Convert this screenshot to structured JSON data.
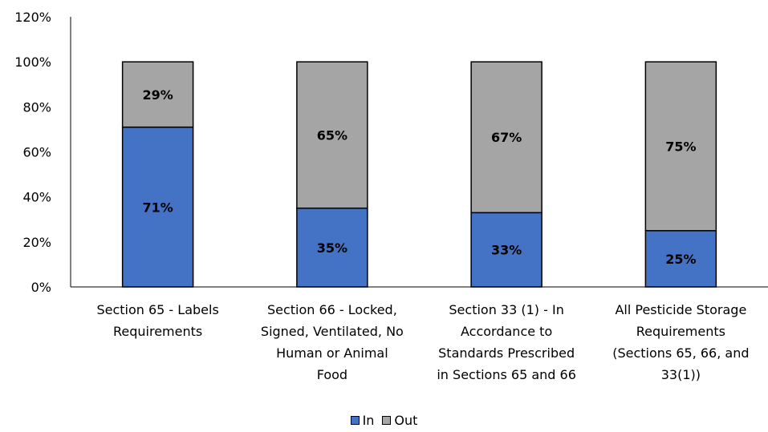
{
  "chart_data": {
    "type": "bar",
    "stacked": true,
    "categories": [
      [
        "Section 65 - Labels",
        "Requirements"
      ],
      [
        "Section 66 - Locked,",
        "Signed, Ventilated, No",
        "Human or Animal",
        "Food"
      ],
      [
        "Section 33 (1) - In",
        "Accordance to",
        "Standards Prescribed",
        "in Sections 65 and 66"
      ],
      [
        "All Pesticide Storage",
        "Requirements",
        "(Sections 65, 66, and",
        "33(1))"
      ]
    ],
    "series": [
      {
        "name": "In",
        "values": [
          71,
          35,
          33,
          25
        ],
        "labels": [
          "71%",
          "35%",
          "33%",
          "25%"
        ],
        "color": "#4472C4"
      },
      {
        "name": "Out",
        "values": [
          29,
          65,
          67,
          75
        ],
        "labels": [
          "29%",
          "65%",
          "67%",
          "75%"
        ],
        "color": "#A5A5A5"
      }
    ],
    "y_ticks": [
      "0%",
      "20%",
      "40%",
      "60%",
      "80%",
      "100%",
      "120%"
    ],
    "ylim": [
      0,
      120
    ],
    "grid": false,
    "legend_position": "bottom"
  }
}
